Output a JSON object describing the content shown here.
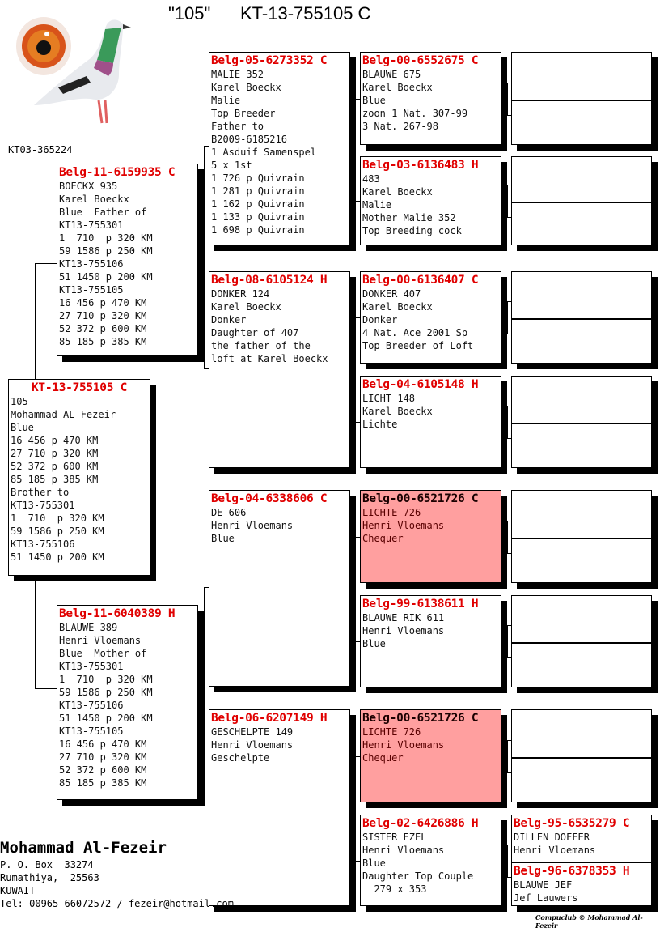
{
  "title": "\"105\"      KT-13-755105 C",
  "photo_ref": "KT03-365224",
  "colors": {
    "ring": "#e00000",
    "highlight": "#ff9f9f"
  },
  "subject": {
    "ring": "KT-13-755105 C",
    "lines": [
      "105",
      "Mohammad AL-Fezeir",
      "Blue",
      "16 456 p 470 KM",
      "27 710 p 320 KM",
      "52 372 p 600 KM",
      "85 185 p 385 KM",
      "Brother to",
      "KT13-755301",
      "1  710  p 320 KM",
      "59 1586 p 250 KM",
      "KT13-755106",
      "51 1450 p 200 KM"
    ]
  },
  "gen1": [
    {
      "ring": "Belg-11-6159935 C",
      "lines": [
        "BOECKX 935",
        "Karel Boeckx",
        "Blue  Father of",
        "KT13-755301",
        "1  710  p 320 KM",
        "59 1586 p 250 KM",
        "KT13-755106",
        "51 1450 p 200 KM",
        "KT13-755105",
        "16 456 p 470 KM",
        "27 710 p 320 KM",
        "52 372 p 600 KM",
        "85 185 p 385 KM"
      ]
    },
    {
      "ring": "Belg-11-6040389 H",
      "lines": [
        "BLAUWE 389",
        "Henri Vloemans",
        "Blue  Mother of",
        "KT13-755301",
        "1  710  p 320 KM",
        "59 1586 p 250 KM",
        "KT13-755106",
        "51 1450 p 200 KM",
        "KT13-755105",
        "16 456 p 470 KM",
        "27 710 p 320 KM",
        "52 372 p 600 KM",
        "85 185 p 385 KM"
      ]
    }
  ],
  "gen2": [
    {
      "ring": "Belg-05-6273352 C",
      "lines": [
        "MALIE 352",
        "Karel Boeckx",
        "Malie",
        "Top Breeder",
        "Father to",
        "B2009-6185216",
        "1 Asduif Samenspel",
        "5 x 1st",
        "1 726 p Quivrain",
        "1 281 p Quivrain",
        "1 162 p Quivrain",
        "1 133 p Quivrain",
        "1 698 p Quivrain"
      ]
    },
    {
      "ring": "Belg-08-6105124 H",
      "lines": [
        "DONKER 124",
        "Karel Boeckx",
        "Donker",
        "Daughter of 407",
        "the father of the",
        "loft at Karel Boeckx"
      ]
    },
    {
      "ring": "Belg-04-6338606 C",
      "lines": [
        "DE 606",
        "Henri Vloemans",
        "Blue"
      ]
    },
    {
      "ring": "Belg-06-6207149 H",
      "lines": [
        "GESCHELPTE 149",
        "Henri Vloemans",
        "Geschelpte"
      ]
    }
  ],
  "gen3": [
    {
      "ring": "Belg-00-6552675 C",
      "highlight": false,
      "lines": [
        "BLAUWE 675",
        "Karel Boeckx",
        "Blue",
        "zoon 1 Nat. 307-99",
        "3 Nat. 267-98"
      ]
    },
    {
      "ring": "Belg-03-6136483 H",
      "highlight": false,
      "lines": [
        "483",
        "Karel Boeckx",
        "Malie",
        "Mother Malie 352",
        "Top Breeding cock"
      ]
    },
    {
      "ring": "Belg-00-6136407 C",
      "highlight": false,
      "lines": [
        "DONKER 407",
        "Karel Boeckx",
        "Donker",
        "4 Nat. Ace 2001 Sp",
        "Top Breeder of Loft"
      ]
    },
    {
      "ring": "Belg-04-6105148 H",
      "highlight": false,
      "lines": [
        "LICHT 148",
        "Karel Boeckx",
        "Lichte"
      ]
    },
    {
      "ring": "Belg-00-6521726 C",
      "highlight": true,
      "lines": [
        "LICHTE 726",
        "Henri Vloemans",
        "Chequer"
      ]
    },
    {
      "ring": "Belg-99-6138611 H",
      "highlight": false,
      "lines": [
        "BLAUWE RIK 611",
        "Henri Vloemans",
        "Blue"
      ]
    },
    {
      "ring": "Belg-00-6521726 C",
      "highlight": true,
      "lines": [
        "LICHTE 726",
        "Henri Vloemans",
        "Chequer"
      ]
    },
    {
      "ring": "Belg-02-6426886 H",
      "highlight": false,
      "lines": [
        "SISTER EZEL",
        "Henri Vloemans",
        "Blue",
        "Daughter Top Couple",
        "  279 x 353"
      ]
    }
  ],
  "gen4": [
    {},
    {},
    {},
    {},
    {},
    {},
    {},
    {},
    {},
    {},
    {},
    {},
    {},
    {},
    {
      "ring": "Belg-95-6535279 C",
      "lines": [
        "DILLEN DOFFER",
        "Henri Vloemans"
      ]
    },
    {
      "ring": "Belg-96-6378353 H",
      "lines": [
        "BLAUWE JEF",
        "Jef Lauwers"
      ]
    }
  ],
  "owner": {
    "name": "Mohammad Al-Fezeir",
    "address": [
      "P. O. Box  33274",
      "Rumathiya,  25563",
      "KUWAIT",
      "Tel: 00965 66072572 / fezeir@hotmail.com"
    ]
  },
  "credit": "Compuclub © Mohammad Al-Fezeir"
}
